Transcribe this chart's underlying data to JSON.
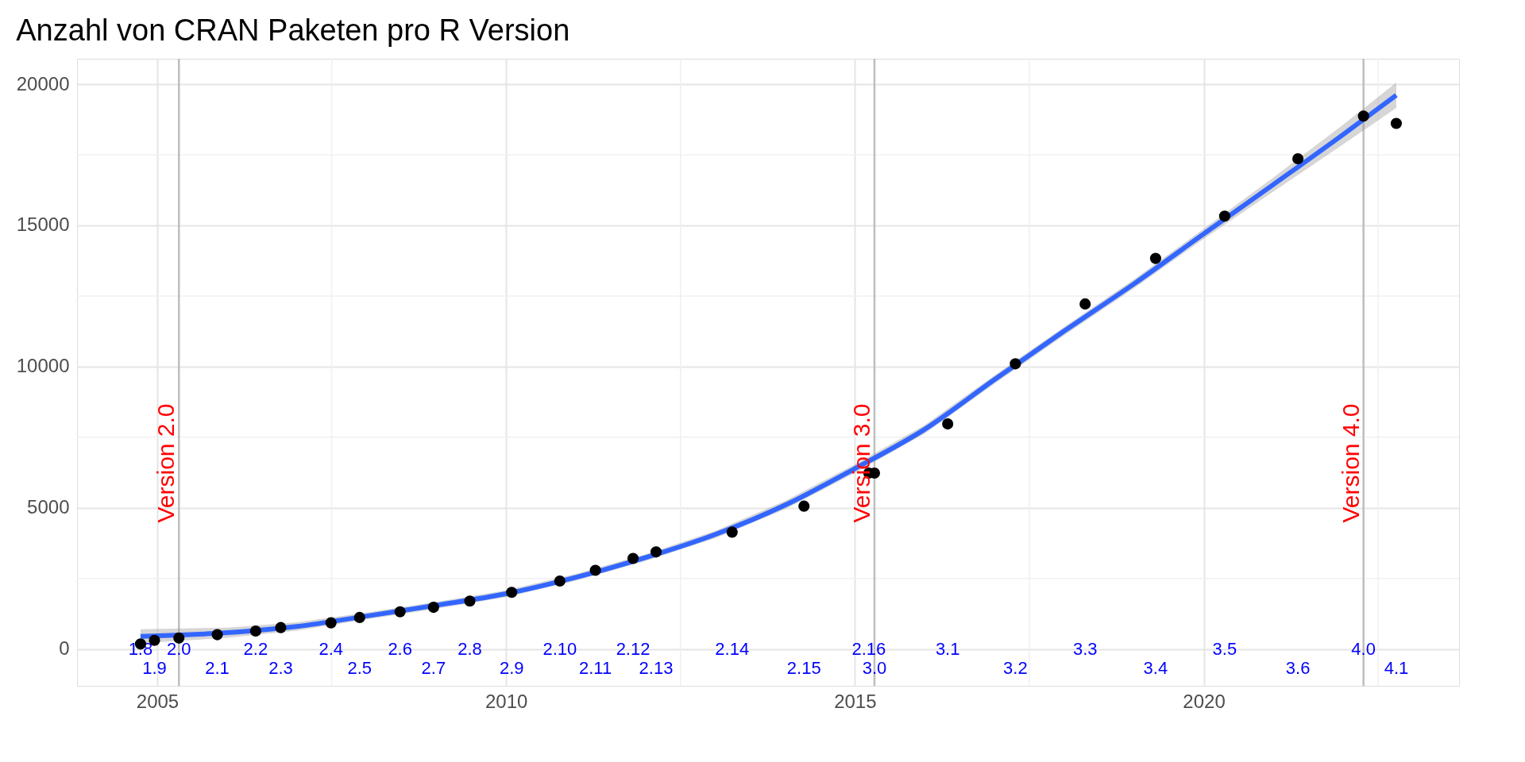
{
  "chart_data": {
    "type": "scatter",
    "title": "Anzahl von CRAN Paketen pro R Version",
    "series": [
      {
        "color": "#000000",
        "marker": "circle",
        "x": [
          2004.76,
          2004.96,
          2005.31,
          2005.86,
          2006.41,
          2006.77,
          2007.49,
          2007.9,
          2008.48,
          2008.96,
          2009.48,
          2010.08,
          2010.77,
          2011.28,
          2011.82,
          2012.15,
          2013.24,
          2014.27,
          2015.2,
          2015.28,
          2016.33,
          2017.3,
          2018.3,
          2019.31,
          2020.3,
          2021.35,
          2022.29,
          2022.76
        ],
        "values": [
          180,
          310,
          390,
          510,
          640,
          760,
          930,
          1120,
          1320,
          1480,
          1700,
          2010,
          2410,
          2790,
          3210,
          3440,
          4140,
          5060,
          6230,
          6230,
          7970,
          10100,
          12220,
          13830,
          15330,
          17360,
          18870,
          18610
        ]
      },
      {
        "type": "line",
        "color": "#3366ff",
        "x": [
          2004.76,
          2006,
          2007,
          2008,
          2009,
          2010,
          2011,
          2012,
          2013,
          2014,
          2015,
          2016,
          2017,
          2018,
          2019,
          2020,
          2021,
          2022,
          2022.76
        ],
        "values": [
          450,
          580,
          800,
          1170,
          1550,
          1960,
          2540,
          3240,
          4060,
          5100,
          6390,
          7780,
          9540,
          11260,
          12930,
          14700,
          16450,
          18220,
          19610
        ],
        "lower": [
          200,
          400,
          650,
          1050,
          1430,
          1840,
          2420,
          3120,
          3930,
          4950,
          6240,
          7630,
          9390,
          11110,
          12770,
          14520,
          16200,
          17870,
          19160
        ],
        "upper": [
          700,
          760,
          950,
          1290,
          1670,
          2080,
          2660,
          3360,
          4190,
          5250,
          6540,
          7930,
          9690,
          11410,
          13090,
          14880,
          16700,
          18570,
          20060
        ]
      }
    ],
    "xlim": [
      2003.85,
      2023.66
    ],
    "ylim": [
      -1300,
      20900
    ],
    "xticks": [
      2005,
      2010,
      2015,
      2020
    ],
    "yticks": [
      0,
      5000,
      10000,
      15000,
      20000
    ],
    "grid": true,
    "ref_lines": [
      {
        "axis": "x",
        "value": 2005.31,
        "label": "Version 2.0",
        "color": "#bebebe"
      },
      {
        "axis": "x",
        "value": 2015.28,
        "label": "Version 3.0",
        "color": "#bebebe"
      },
      {
        "axis": "x",
        "value": 2022.29,
        "label": "Version 4.0",
        "color": "#bebebe"
      }
    ],
    "annotations": [
      "1.8",
      "1.9",
      "2.0",
      "2.1",
      "2.2",
      "2.3",
      "2.4",
      "2.5",
      "2.6",
      "2.7",
      "2.8",
      "2.9",
      "2.10",
      "2.11",
      "2.12",
      "2.13",
      "2.14",
      "2.15",
      "2.16",
      "3.0",
      "3.1",
      "3.2",
      "3.3",
      "3.4",
      "3.5",
      "3.6",
      "4.0",
      "4.1"
    ]
  }
}
